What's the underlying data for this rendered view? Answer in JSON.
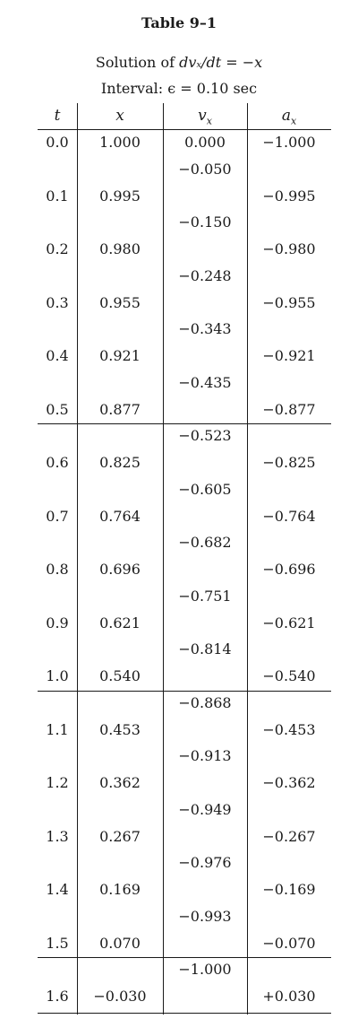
{
  "title": "Table 9–1",
  "subtitle": {
    "prefix": "Solution of ",
    "equation": "dvₓ/dt = −x",
    "interval_label": "Interval: ",
    "interval_value": "ϵ = 0.10 sec"
  },
  "headers": {
    "t": "t",
    "x": "x",
    "v": "v",
    "v_sub": "x",
    "a": "a",
    "a_sub": "x"
  },
  "rows": [
    {
      "t": "0.0",
      "x": "1.000",
      "v": "0.000",
      "a": "−1.000"
    },
    {
      "t": "0.1",
      "x": "0.995",
      "a": "−0.995"
    },
    {
      "t": "0.2",
      "x": "0.980",
      "a": "−0.980"
    },
    {
      "t": "0.3",
      "x": "0.955",
      "a": "−0.955"
    },
    {
      "t": "0.4",
      "x": "0.921",
      "a": "−0.921"
    },
    {
      "t": "0.5",
      "x": "0.877",
      "a": "−0.877"
    },
    {
      "t": "0.6",
      "x": "0.825",
      "a": "−0.825"
    },
    {
      "t": "0.7",
      "x": "0.764",
      "a": "−0.764"
    },
    {
      "t": "0.8",
      "x": "0.696",
      "a": "−0.696"
    },
    {
      "t": "0.9",
      "x": "0.621",
      "a": "−0.621"
    },
    {
      "t": "1.0",
      "x": "0.540",
      "a": "−0.540"
    },
    {
      "t": "1.1",
      "x": "0.453",
      "a": "−0.453"
    },
    {
      "t": "1.2",
      "x": "0.362",
      "a": "−0.362"
    },
    {
      "t": "1.3",
      "x": "0.267",
      "a": "−0.267"
    },
    {
      "t": "1.4",
      "x": "0.169",
      "a": "−0.169"
    },
    {
      "t": "1.5",
      "x": "0.070",
      "a": "−0.070"
    },
    {
      "t": "1.6",
      "x": "−0.030",
      "a": "+0.030"
    }
  ],
  "half_step_v": [
    "−0.050",
    "−0.150",
    "−0.248",
    "−0.343",
    "−0.435",
    "−0.523",
    "−0.605",
    "−0.682",
    "−0.751",
    "−0.814",
    "−0.868",
    "−0.913",
    "−0.949",
    "−0.976",
    "−0.993",
    "−1.000"
  ]
}
